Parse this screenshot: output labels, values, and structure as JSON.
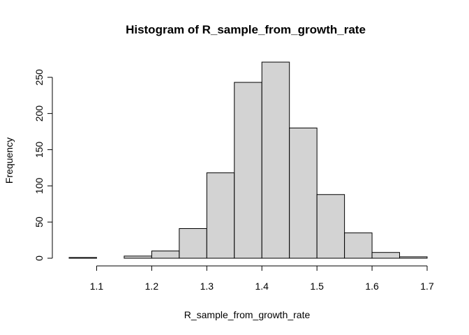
{
  "chart_data": {
    "type": "bar",
    "title": "Histogram of R_sample_from_growth_rate",
    "xlabel": "R_sample_from_growth_rate",
    "ylabel": "Frequency",
    "bins": [
      {
        "start": 1.05,
        "end": 1.1,
        "count": 1
      },
      {
        "start": 1.1,
        "end": 1.15,
        "count": 0
      },
      {
        "start": 1.15,
        "end": 1.2,
        "count": 3
      },
      {
        "start": 1.2,
        "end": 1.25,
        "count": 10
      },
      {
        "start": 1.25,
        "end": 1.3,
        "count": 41
      },
      {
        "start": 1.3,
        "end": 1.35,
        "count": 118
      },
      {
        "start": 1.35,
        "end": 1.4,
        "count": 243
      },
      {
        "start": 1.4,
        "end": 1.45,
        "count": 271
      },
      {
        "start": 1.45,
        "end": 1.5,
        "count": 180
      },
      {
        "start": 1.5,
        "end": 1.55,
        "count": 88
      },
      {
        "start": 1.55,
        "end": 1.6,
        "count": 35
      },
      {
        "start": 1.6,
        "end": 1.65,
        "count": 8
      },
      {
        "start": 1.65,
        "end": 1.7,
        "count": 2
      }
    ],
    "x_ticks": [
      "1.1",
      "1.2",
      "1.3",
      "1.4",
      "1.5",
      "1.6",
      "1.7"
    ],
    "y_ticks": [
      "0",
      "50",
      "100",
      "150",
      "200",
      "250"
    ],
    "xlim": [
      1.05,
      1.7
    ],
    "ylim": [
      0,
      271
    ],
    "bar_color": "#d3d3d3",
    "edge_color": "#000000",
    "grid": false
  }
}
